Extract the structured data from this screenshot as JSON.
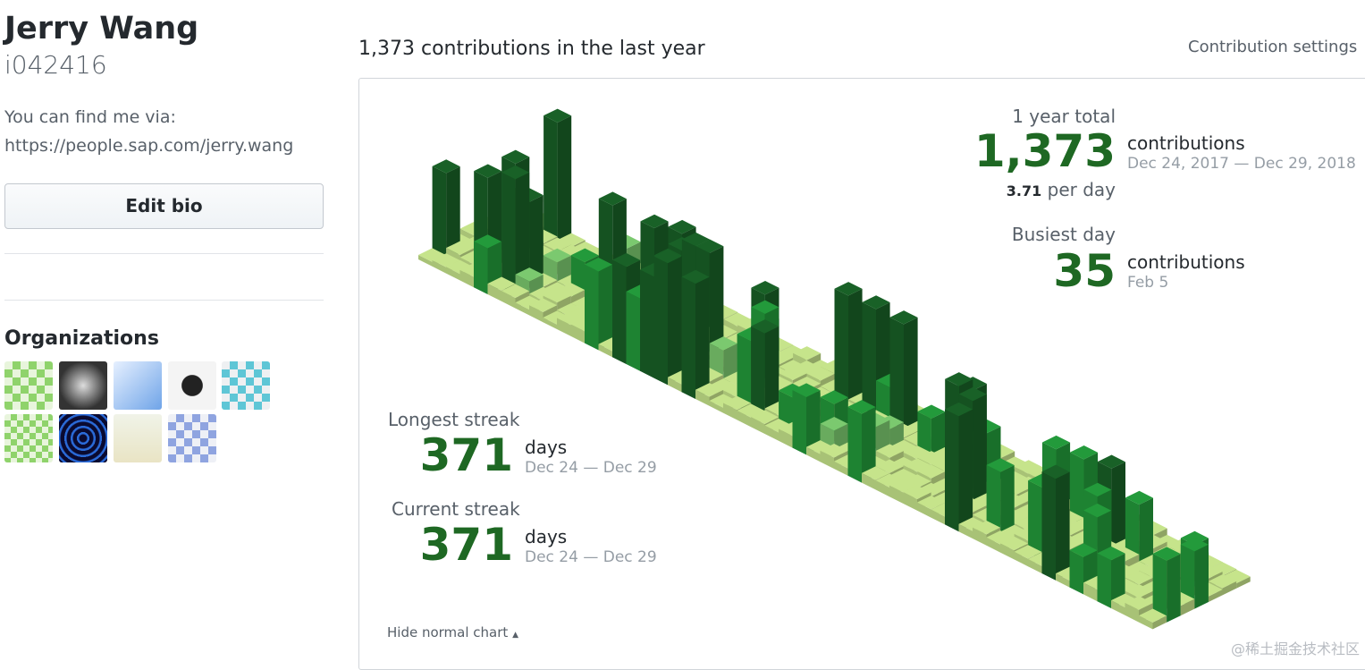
{
  "profile": {
    "name": "Jerry Wang",
    "username": "i042416",
    "bio_line1": "You can find me via:",
    "bio_line2": "https://people.sap.com/jerry.wang",
    "edit_button": "Edit bio",
    "organizations_heading": "Organizations"
  },
  "contributions": {
    "heading": "1,373 contributions in the last year",
    "settings": "Contribution settings",
    "year_total_label": "1 year total",
    "year_total": "1,373",
    "year_total_unit": "contributions",
    "year_range": "Dec 24, 2017 — Dec 29, 2018",
    "per_day_value": "3.71",
    "per_day_text": "per day",
    "busiest_label": "Busiest day",
    "busiest_value": "35",
    "busiest_unit": "contributions",
    "busiest_date": "Feb 5",
    "longest_label": "Longest streak",
    "longest_value": "371",
    "longest_unit": "days",
    "longest_range": "Dec 24 — Dec 29",
    "current_label": "Current streak",
    "current_value": "371",
    "current_unit": "days",
    "current_range": "Dec 24 — Dec 29",
    "hide_chart": "Hide normal chart"
  },
  "watermark": "@稀土掘金技术社区"
}
